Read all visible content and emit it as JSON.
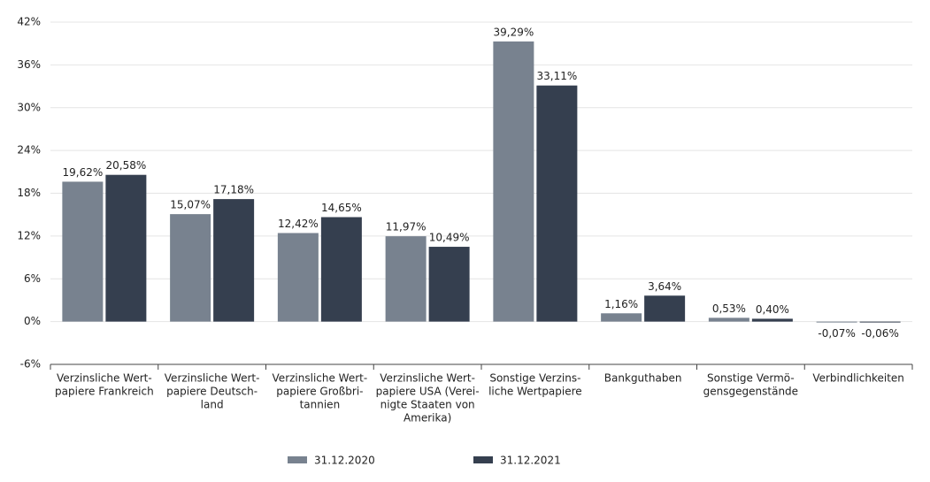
{
  "chart_data": {
    "type": "bar",
    "categories": [
      [
        "Verzinsliche Wert-",
        "papiere Frankreich"
      ],
      [
        "Verzinsliche Wert-",
        "papiere Deutsch-",
        "land"
      ],
      [
        "Verzinsliche Wert-",
        "papiere Großbri-",
        "tannien"
      ],
      [
        "Verzinsliche Wert-",
        "papiere USA (Verei-",
        "nigte Staaten von",
        "Amerika)"
      ],
      [
        "Sonstige Verzins-",
        "liche Wertpapiere"
      ],
      [
        "Bankguthaben"
      ],
      [
        "Sonstige Vermö-",
        "gensgegenstände"
      ],
      [
        "Verbindlichkeiten"
      ]
    ],
    "series": [
      {
        "name": "31.12.2020",
        "color": "#78828f",
        "values": [
          19.62,
          15.07,
          12.42,
          11.97,
          39.29,
          1.16,
          0.53,
          -0.07
        ],
        "value_labels": [
          "19,62%",
          "15,07%",
          "12,42%",
          "11,97%",
          "39,29%",
          "1,16%",
          "0,53%",
          "-0,07%"
        ]
      },
      {
        "name": "31.12.2021",
        "color": "#353f4f",
        "values": [
          20.58,
          17.18,
          14.65,
          10.49,
          33.11,
          3.64,
          0.4,
          -0.06
        ],
        "value_labels": [
          "20,58%",
          "17,18%",
          "14,65%",
          "10,49%",
          "33,11%",
          "3,64%",
          "0,40%",
          "-0,06%"
        ]
      }
    ],
    "ylim": [
      -6,
      42
    ],
    "yticks": [
      {
        "value": -6,
        "label": "-6%"
      },
      {
        "value": 0,
        "label": "0%"
      },
      {
        "value": 6,
        "label": "6%"
      },
      {
        "value": 12,
        "label": "12%"
      },
      {
        "value": 18,
        "label": "18%"
      },
      {
        "value": 24,
        "label": "24%"
      },
      {
        "value": 30,
        "label": "30%"
      },
      {
        "value": 36,
        "label": "36%"
      },
      {
        "value": 42,
        "label": "42%"
      }
    ],
    "grid": true
  }
}
